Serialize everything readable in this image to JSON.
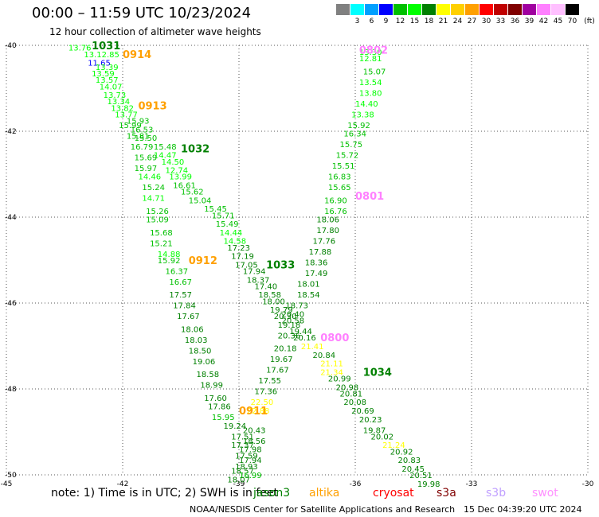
{
  "header": {
    "title": "00:00 – 11:59 UTC 10/23/2024",
    "subtitle": "12 hour collection of altimeter wave heights"
  },
  "legend": {
    "unit": "(ft)",
    "colors": [
      "#808080",
      "#00ffff",
      "#00a0ff",
      "#0000ff",
      "#00c000",
      "#00ff00",
      "#008000",
      "#ffff00",
      "#ffd000",
      "#ffa000",
      "#ff0000",
      "#c00000",
      "#800000",
      "#a000a0",
      "#ff80ff",
      "#ffc0ff",
      "#000000"
    ],
    "labels": [
      "",
      "3",
      "6",
      "9",
      "12",
      "15",
      "18",
      "21",
      "24",
      "27",
      "30",
      "33",
      "36",
      "39",
      "42",
      "45",
      "70"
    ]
  },
  "footer": {
    "note_prefix": "note: 1) Time is in UTC; 2) SWH is in feet",
    "satellites": [
      {
        "name": "jason3",
        "color": "#008000"
      },
      {
        "name": "altika",
        "color": "#ffa000"
      },
      {
        "name": "cryosat",
        "color": "#ff0000"
      },
      {
        "name": "s3a",
        "color": "#800000"
      },
      {
        "name": "s3b",
        "color": "#c0a0ff"
      },
      {
        "name": "swot",
        "color": "#ff90ff"
      }
    ],
    "center": "NOAA/NESDIS Center for Satellite Applications and Research",
    "generated": "15 Dec 04:39:20 UTC 2024"
  },
  "chart_data": {
    "type": "scatter",
    "xlim": [
      -45,
      -30
    ],
    "ylim": [
      -50,
      -40
    ],
    "xticks": [
      -45,
      -42,
      -39,
      -36,
      -33,
      -30
    ],
    "yticks": [
      -40,
      -42,
      -44,
      -46,
      -48,
      -50
    ],
    "grid": true,
    "passes": [
      {
        "label": "1031",
        "color": "#008000",
        "label_lon": -42.8,
        "label_lat": -40.0
      },
      {
        "label": "0914",
        "color": "#ffa000",
        "label_lon": -42.0,
        "label_lat": -40.2
      },
      {
        "label": "0913",
        "color": "#ffa000",
        "label_lon": -41.6,
        "label_lat": -41.4
      },
      {
        "label": "1032",
        "color": "#008000",
        "label_lon": -40.5,
        "label_lat": -42.4
      },
      {
        "label": "0912",
        "color": "#ffa000",
        "label_lon": -40.3,
        "label_lat": -45.0
      },
      {
        "label": "1033",
        "color": "#008000",
        "label_lon": -38.3,
        "label_lat": -45.1
      },
      {
        "label": "0802",
        "color": "#ff80ff",
        "label_lon": -35.9,
        "label_lat": -40.1
      },
      {
        "label": "0801",
        "color": "#ff80ff",
        "label_lon": -36.0,
        "label_lat": -43.5
      },
      {
        "label": "0800",
        "color": "#ff80ff",
        "label_lon": -36.9,
        "label_lat": -46.8
      },
      {
        "label": "1034",
        "color": "#008000",
        "label_lon": -35.8,
        "label_lat": -47.6
      },
      {
        "label": "0911",
        "color": "#ffa000",
        "label_lon": -39.0,
        "label_lat": -48.5
      }
    ],
    "points": [
      {
        "lon": -43.4,
        "lat": -40.05,
        "v": "13.76",
        "c": "#00ff00"
      },
      {
        "lon": -43.0,
        "lat": -40.2,
        "v": "13.12.85",
        "c": "#00ff00"
      },
      {
        "lon": -42.9,
        "lat": -40.4,
        "v": "11.65",
        "c": "#0000ff"
      },
      {
        "lon": -42.7,
        "lat": -40.5,
        "v": "13.39",
        "c": "#00ff00"
      },
      {
        "lon": -42.8,
        "lat": -40.65,
        "v": "13.59",
        "c": "#00ff00"
      },
      {
        "lon": -42.7,
        "lat": -40.8,
        "v": "13.57",
        "c": "#00ff00"
      },
      {
        "lon": -42.6,
        "lat": -40.95,
        "v": "14.07",
        "c": "#00ff00"
      },
      {
        "lon": -42.5,
        "lat": -41.15,
        "v": "13.73",
        "c": "#00ff00"
      },
      {
        "lon": -42.4,
        "lat": -41.3,
        "v": "13.34",
        "c": "#00ff00"
      },
      {
        "lon": -42.3,
        "lat": -41.45,
        "v": "13.82",
        "c": "#00ff00"
      },
      {
        "lon": -42.2,
        "lat": -41.6,
        "v": "13.77",
        "c": "#00ff00"
      },
      {
        "lon": -41.9,
        "lat": -41.75,
        "v": "15.93",
        "c": "#00c000"
      },
      {
        "lon": -42.1,
        "lat": -41.85,
        "v": "15.99",
        "c": "#00c000"
      },
      {
        "lon": -41.8,
        "lat": -41.95,
        "v": "16.53",
        "c": "#00c000"
      },
      {
        "lon": -41.9,
        "lat": -42.1,
        "v": "15.81",
        "c": "#00c000"
      },
      {
        "lon": -41.7,
        "lat": -42.15,
        "v": "15.50",
        "c": "#00c000"
      },
      {
        "lon": -41.8,
        "lat": -42.35,
        "v": "16.79",
        "c": "#00c000"
      },
      {
        "lon": -41.2,
        "lat": -42.35,
        "v": "15.48",
        "c": "#00c000"
      },
      {
        "lon": -41.2,
        "lat": -42.55,
        "v": "14.47",
        "c": "#00ff00"
      },
      {
        "lon": -41.7,
        "lat": -42.6,
        "v": "15.69",
        "c": "#00c000"
      },
      {
        "lon": -41.0,
        "lat": -42.7,
        "v": "14.50",
        "c": "#00ff00"
      },
      {
        "lon": -41.7,
        "lat": -42.85,
        "v": "15.97",
        "c": "#00c000"
      },
      {
        "lon": -40.9,
        "lat": -42.9,
        "v": "12.74",
        "c": "#00ff00"
      },
      {
        "lon": -41.6,
        "lat": -43.05,
        "v": "14.46",
        "c": "#00ff00"
      },
      {
        "lon": -40.8,
        "lat": -43.05,
        "v": "13.99",
        "c": "#00ff00"
      },
      {
        "lon": -40.7,
        "lat": -43.25,
        "v": "16.61",
        "c": "#00c000"
      },
      {
        "lon": -41.5,
        "lat": -43.3,
        "v": "15.24",
        "c": "#00c000"
      },
      {
        "lon": -40.5,
        "lat": -43.4,
        "v": "15.62",
        "c": "#00c000"
      },
      {
        "lon": -41.5,
        "lat": -43.55,
        "v": "14.71",
        "c": "#00ff00"
      },
      {
        "lon": -40.3,
        "lat": -43.6,
        "v": "15.04",
        "c": "#00c000"
      },
      {
        "lon": -39.9,
        "lat": -43.8,
        "v": "15.45",
        "c": "#00c000"
      },
      {
        "lon": -41.4,
        "lat": -43.85,
        "v": "15.26",
        "c": "#00c000"
      },
      {
        "lon": -39.7,
        "lat": -43.95,
        "v": "15.71",
        "c": "#00c000"
      },
      {
        "lon": -41.4,
        "lat": -44.05,
        "v": "15.09",
        "c": "#00c000"
      },
      {
        "lon": -39.6,
        "lat": -44.15,
        "v": "15.49",
        "c": "#00c000"
      },
      {
        "lon": -41.3,
        "lat": -44.35,
        "v": "15.68",
        "c": "#00c000"
      },
      {
        "lon": -39.5,
        "lat": -44.35,
        "v": "14.44",
        "c": "#00ff00"
      },
      {
        "lon": -39.4,
        "lat": -44.55,
        "v": "14.58",
        "c": "#00ff00"
      },
      {
        "lon": -41.3,
        "lat": -44.6,
        "v": "15.21",
        "c": "#00c000"
      },
      {
        "lon": -39.3,
        "lat": -44.7,
        "v": "17.23",
        "c": "#008000"
      },
      {
        "lon": -41.1,
        "lat": -44.85,
        "v": "14.88",
        "c": "#00ff00"
      },
      {
        "lon": -39.2,
        "lat": -44.9,
        "v": "17.19",
        "c": "#008000"
      },
      {
        "lon": -41.1,
        "lat": -45.0,
        "v": "15.92",
        "c": "#00c000"
      },
      {
        "lon": -39.1,
        "lat": -45.1,
        "v": "17.05",
        "c": "#008000"
      },
      {
        "lon": -40.9,
        "lat": -45.25,
        "v": "16.37",
        "c": "#00c000"
      },
      {
        "lon": -38.9,
        "lat": -45.25,
        "v": "17.94",
        "c": "#008000"
      },
      {
        "lon": -38.8,
        "lat": -45.45,
        "v": "18.37",
        "c": "#008000"
      },
      {
        "lon": -40.8,
        "lat": -45.5,
        "v": "16.67",
        "c": "#00c000"
      },
      {
        "lon": -38.6,
        "lat": -45.6,
        "v": "17.40",
        "c": "#008000"
      },
      {
        "lon": -40.8,
        "lat": -45.8,
        "v": "17.57",
        "c": "#008000"
      },
      {
        "lon": -38.5,
        "lat": -45.8,
        "v": "18.58",
        "c": "#008000"
      },
      {
        "lon": -38.4,
        "lat": -45.95,
        "v": "18.00",
        "c": "#008000"
      },
      {
        "lon": -40.7,
        "lat": -46.05,
        "v": "17.84",
        "c": "#008000"
      },
      {
        "lon": -37.8,
        "lat": -46.05,
        "v": "18.73",
        "c": "#008000"
      },
      {
        "lon": -38.2,
        "lat": -46.15,
        "v": "19.79",
        "c": "#008000"
      },
      {
        "lon": -37.9,
        "lat": -46.25,
        "v": "20.40",
        "c": "#008000"
      },
      {
        "lon": -40.6,
        "lat": -46.3,
        "v": "17.67",
        "c": "#008000"
      },
      {
        "lon": -38.1,
        "lat": -46.3,
        "v": "20.30",
        "c": "#008000"
      },
      {
        "lon": -37.9,
        "lat": -46.4,
        "v": "20.58",
        "c": "#008000"
      },
      {
        "lon": -38.0,
        "lat": -46.5,
        "v": "19.18",
        "c": "#008000"
      },
      {
        "lon": -40.5,
        "lat": -46.6,
        "v": "18.06",
        "c": "#008000"
      },
      {
        "lon": -37.7,
        "lat": -46.65,
        "v": "19.44",
        "c": "#008000"
      },
      {
        "lon": -38.0,
        "lat": -46.75,
        "v": "20.36",
        "c": "#008000"
      },
      {
        "lon": -37.6,
        "lat": -46.8,
        "v": "20.16",
        "c": "#008000"
      },
      {
        "lon": -40.4,
        "lat": -46.85,
        "v": "18.03",
        "c": "#008000"
      },
      {
        "lon": -37.4,
        "lat": -47.0,
        "v": "21.41",
        "c": "#ffff00"
      },
      {
        "lon": -38.1,
        "lat": -47.05,
        "v": "20.18",
        "c": "#008000"
      },
      {
        "lon": -40.3,
        "lat": -47.1,
        "v": "18.50",
        "c": "#008000"
      },
      {
        "lon": -37.1,
        "lat": -47.2,
        "v": "20.84",
        "c": "#008000"
      },
      {
        "lon": -38.2,
        "lat": -47.3,
        "v": "19.67",
        "c": "#008000"
      },
      {
        "lon": -40.2,
        "lat": -47.35,
        "v": "19.06",
        "c": "#008000"
      },
      {
        "lon": -36.9,
        "lat": -47.4,
        "v": "21.11",
        "c": "#ffff00"
      },
      {
        "lon": -38.3,
        "lat": -47.55,
        "v": "17.67",
        "c": "#008000"
      },
      {
        "lon": -36.9,
        "lat": -47.6,
        "v": "21.34",
        "c": "#ffff00"
      },
      {
        "lon": -40.1,
        "lat": -47.65,
        "v": "18.58",
        "c": "#008000"
      },
      {
        "lon": -36.7,
        "lat": -47.75,
        "v": "20.99",
        "c": "#008000"
      },
      {
        "lon": -38.5,
        "lat": -47.8,
        "v": "17.55",
        "c": "#008000"
      },
      {
        "lon": -40.0,
        "lat": -47.9,
        "v": "18.99",
        "c": "#008000"
      },
      {
        "lon": -36.5,
        "lat": -47.95,
        "v": "20.98",
        "c": "#008000"
      },
      {
        "lon": -38.6,
        "lat": -48.05,
        "v": "17.36",
        "c": "#008000"
      },
      {
        "lon": -36.4,
        "lat": -48.1,
        "v": "20.81",
        "c": "#008000"
      },
      {
        "lon": -39.9,
        "lat": -48.2,
        "v": "17.60",
        "c": "#008000"
      },
      {
        "lon": -36.3,
        "lat": -48.3,
        "v": "20.08",
        "c": "#008000"
      },
      {
        "lon": -38.7,
        "lat": -48.3,
        "v": "22.50",
        "c": "#ffff00"
      },
      {
        "lon": -39.8,
        "lat": -48.4,
        "v": "17.86",
        "c": "#008000"
      },
      {
        "lon": -36.1,
        "lat": -48.5,
        "v": "20.69",
        "c": "#008000"
      },
      {
        "lon": -38.8,
        "lat": -48.5,
        "v": "22.88",
        "c": "#ffff00"
      },
      {
        "lon": -39.7,
        "lat": -48.65,
        "v": "15.95",
        "c": "#00c000"
      },
      {
        "lon": -35.9,
        "lat": -48.7,
        "v": "20.23",
        "c": "#008000"
      },
      {
        "lon": -39.4,
        "lat": -48.85,
        "v": "19.24",
        "c": "#008000"
      },
      {
        "lon": -38.9,
        "lat": -48.95,
        "v": "20.43",
        "c": "#008000"
      },
      {
        "lon": -35.8,
        "lat": -48.95,
        "v": "19.87",
        "c": "#008000"
      },
      {
        "lon": -39.2,
        "lat": -49.1,
        "v": "17.51",
        "c": "#008000"
      },
      {
        "lon": -35.6,
        "lat": -49.1,
        "v": "20.02",
        "c": "#008000"
      },
      {
        "lon": -38.9,
        "lat": -49.2,
        "v": "18.56",
        "c": "#008000"
      },
      {
        "lon": -35.3,
        "lat": -49.3,
        "v": "21.24",
        "c": "#ffff00"
      },
      {
        "lon": -39.2,
        "lat": -49.3,
        "v": "17.37",
        "c": "#008000"
      },
      {
        "lon": -39.0,
        "lat": -49.4,
        "v": "17.98",
        "c": "#008000"
      },
      {
        "lon": -35.1,
        "lat": -49.45,
        "v": "20.92",
        "c": "#008000"
      },
      {
        "lon": -39.1,
        "lat": -49.55,
        "v": "17.59",
        "c": "#008000"
      },
      {
        "lon": -39.0,
        "lat": -49.65,
        "v": "17.94",
        "c": "#008000"
      },
      {
        "lon": -34.9,
        "lat": -49.65,
        "v": "20.83",
        "c": "#008000"
      },
      {
        "lon": -39.1,
        "lat": -49.8,
        "v": "18.93",
        "c": "#008000"
      },
      {
        "lon": -34.8,
        "lat": -49.85,
        "v": "20.45",
        "c": "#008000"
      },
      {
        "lon": -39.2,
        "lat": -49.9,
        "v": "18.57",
        "c": "#008000"
      },
      {
        "lon": -34.6,
        "lat": -50.0,
        "v": "20.51",
        "c": "#008000"
      },
      {
        "lon": -39.0,
        "lat": -50.0,
        "v": "16.99",
        "c": "#00c000"
      },
      {
        "lon": -39.3,
        "lat": -50.1,
        "v": "18.07",
        "c": "#008000"
      },
      {
        "lon": -34.4,
        "lat": -50.2,
        "v": "19.98",
        "c": "#008000"
      },
      {
        "lon": -35.9,
        "lat": -40.15,
        "v": "13.30",
        "c": "#00ff00"
      },
      {
        "lon": -35.9,
        "lat": -40.3,
        "v": "12.81",
        "c": "#00ff00"
      },
      {
        "lon": -35.8,
        "lat": -40.6,
        "v": "15.07",
        "c": "#00c000"
      },
      {
        "lon": -35.9,
        "lat": -40.85,
        "v": "13.54",
        "c": "#00ff00"
      },
      {
        "lon": -35.9,
        "lat": -41.1,
        "v": "13.80",
        "c": "#00ff00"
      },
      {
        "lon": -36.0,
        "lat": -41.35,
        "v": "14.40",
        "c": "#00ff00"
      },
      {
        "lon": -36.1,
        "lat": -41.6,
        "v": "13.38",
        "c": "#00ff00"
      },
      {
        "lon": -36.2,
        "lat": -41.85,
        "v": "15.92",
        "c": "#00c000"
      },
      {
        "lon": -36.3,
        "lat": -42.05,
        "v": "16.34",
        "c": "#00c000"
      },
      {
        "lon": -36.4,
        "lat": -42.3,
        "v": "15.75",
        "c": "#00c000"
      },
      {
        "lon": -36.5,
        "lat": -42.55,
        "v": "15.72",
        "c": "#00c000"
      },
      {
        "lon": -36.6,
        "lat": -42.8,
        "v": "15.51",
        "c": "#00c000"
      },
      {
        "lon": -36.7,
        "lat": -43.05,
        "v": "16.83",
        "c": "#00c000"
      },
      {
        "lon": -36.7,
        "lat": -43.3,
        "v": "15.65",
        "c": "#00c000"
      },
      {
        "lon": -36.8,
        "lat": -43.6,
        "v": "16.90",
        "c": "#00c000"
      },
      {
        "lon": -36.8,
        "lat": -43.85,
        "v": "16.76",
        "c": "#00c000"
      },
      {
        "lon": -37.0,
        "lat": -44.05,
        "v": "18.06",
        "c": "#008000"
      },
      {
        "lon": -37.0,
        "lat": -44.3,
        "v": "17.80",
        "c": "#008000"
      },
      {
        "lon": -37.1,
        "lat": -44.55,
        "v": "17.76",
        "c": "#008000"
      },
      {
        "lon": -37.2,
        "lat": -44.8,
        "v": "17.88",
        "c": "#008000"
      },
      {
        "lon": -37.3,
        "lat": -45.05,
        "v": "18.36",
        "c": "#008000"
      },
      {
        "lon": -37.3,
        "lat": -45.3,
        "v": "17.49",
        "c": "#008000"
      },
      {
        "lon": -37.5,
        "lat": -45.55,
        "v": "18.01",
        "c": "#008000"
      },
      {
        "lon": -37.5,
        "lat": -45.8,
        "v": "18.54",
        "c": "#008000"
      }
    ]
  }
}
